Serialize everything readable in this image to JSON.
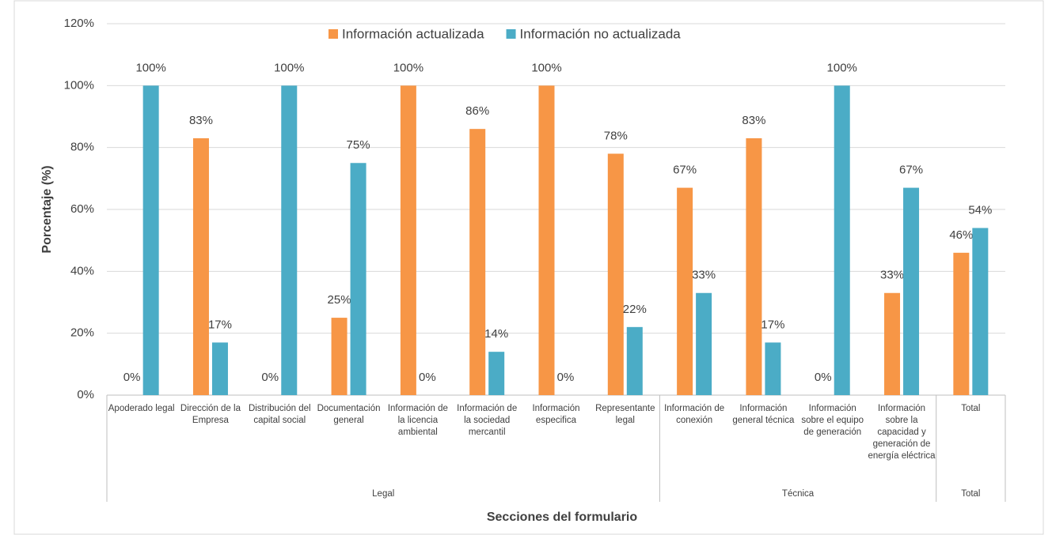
{
  "chart_data": {
    "type": "bar",
    "y_axis_label": "Porcentaje (%)",
    "x_axis_label": "Secciones del formulario",
    "groups": [
      {
        "label": "Legal",
        "categories": [
          "Apoderado legal",
          "Dirección de la Empresa",
          "Distribución del capital social",
          "Documentación general",
          "Información de la licencia ambiental",
          "Información de la sociedad mercantil",
          "Información especifica",
          "Representante legal"
        ]
      },
      {
        "label": "Técnica",
        "categories": [
          "Información de conexión",
          "Información general técnica",
          "Información sobre el equipo de generación",
          "Información sobre la capacidad y generación de energía eléctrica"
        ]
      },
      {
        "label": "Total",
        "categories": [
          "Total"
        ]
      }
    ],
    "series": [
      {
        "name": "Información actualizada",
        "color": "#f79646",
        "values": [
          0,
          83,
          0,
          25,
          100,
          86,
          100,
          78,
          67,
          83,
          0,
          33,
          46
        ],
        "value_labels": [
          "0%",
          "83%",
          "0%",
          "25%",
          "100%",
          "86%",
          "100%",
          "78%",
          "67%",
          "83%",
          "0%",
          "33%",
          "46%"
        ]
      },
      {
        "name": "Información no actualizada",
        "color": "#4bacc6",
        "values": [
          100,
          17,
          100,
          75,
          0,
          14,
          0,
          22,
          33,
          17,
          100,
          67,
          54
        ],
        "value_labels": [
          "100%",
          "17%",
          "100%",
          "75%",
          "0%",
          "14%",
          "0%",
          "22%",
          "33%",
          "17%",
          "100%",
          "67%",
          "54%"
        ]
      }
    ],
    "ylim": [
      0,
      120
    ],
    "yticks": [
      {
        "value": 0,
        "label": "0%"
      },
      {
        "value": 20,
        "label": "20%"
      },
      {
        "value": 40,
        "label": "40%"
      },
      {
        "value": 60,
        "label": "60%"
      },
      {
        "value": 80,
        "label": "80%"
      },
      {
        "value": 100,
        "label": "100%"
      },
      {
        "value": 120,
        "label": "120%"
      }
    ],
    "grid": true,
    "legend": "top"
  }
}
